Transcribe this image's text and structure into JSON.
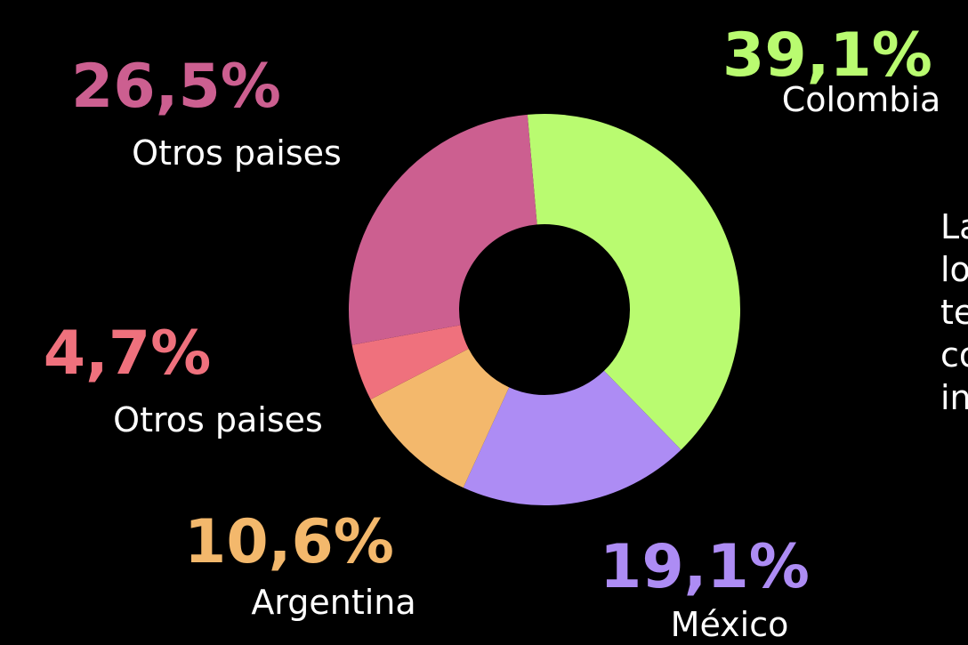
{
  "chart_data": {
    "type": "pie",
    "donut": true,
    "categories": [
      "Colombia",
      "México",
      "Argentina",
      "Otros paises",
      "Otros paises"
    ],
    "values": [
      39.1,
      19.1,
      10.6,
      4.7,
      26.5
    ],
    "value_labels": [
      "39,1%",
      "19,1%",
      "10,6%",
      "4,7%",
      "26,5%"
    ],
    "colors": [
      "#b9fb70",
      "#ad8cf4",
      "#f3b86c",
      "#ef717d",
      "#cc5f90"
    ],
    "annotation": [
      "La",
      "lo",
      "te",
      "co",
      "in"
    ]
  }
}
